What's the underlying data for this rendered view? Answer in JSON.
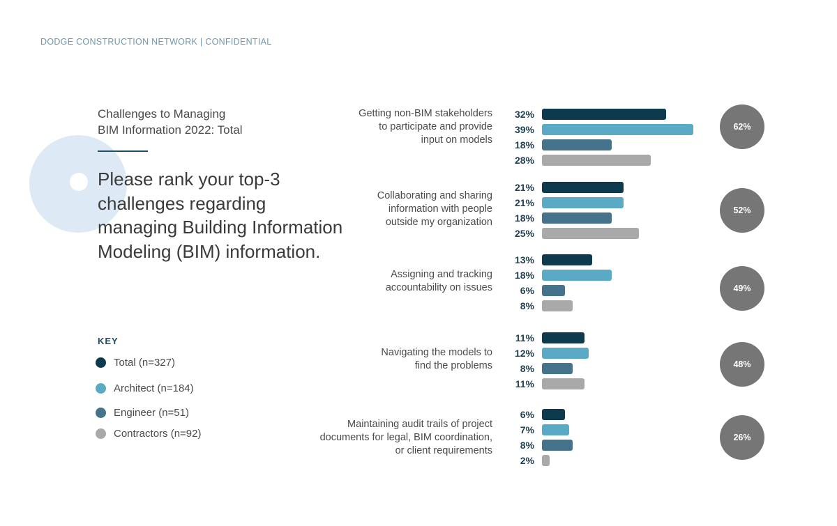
{
  "header": "DODGE CONSTRUCTION NETWORK  |  CONFIDENTIAL",
  "question": "Please rank your top-3 challenges regarding managing Building Information Modeling (BIM) information.",
  "key": {
    "title": "KEY",
    "items": [
      {
        "label": "Total (n=327)",
        "color": "#0e3a4e"
      },
      {
        "label": "Architect (n=184)",
        "color": "#5aaac6"
      },
      {
        "label": "Engineer (n=51)",
        "color": "#46738c"
      },
      {
        "label": "Contractors (n=92)",
        "color": "#a9a9a9"
      }
    ]
  },
  "chart_data": {
    "type": "bar",
    "orientation": "horizontal",
    "title": "Challenges to Managing\nBIM Information 2022: Total",
    "categories": [
      "Getting non-BIM stakeholders\nto participate and provide\ninput on models",
      "Collaborating and sharing\ninformation with people\noutside my organization",
      "Assigning and tracking\naccountability on issues",
      "Navigating the models to\nfind the problems",
      "Maintaining audit trails of project\ndocuments for legal, BIM coordination,\nor client requirements"
    ],
    "series": [
      {
        "name": "Total (n=327)",
        "color": "#0e3a4e",
        "values": [
          32,
          21,
          13,
          11,
          6
        ]
      },
      {
        "name": "Architect (n=184)",
        "color": "#5aaac6",
        "values": [
          39,
          21,
          18,
          12,
          7
        ]
      },
      {
        "name": "Engineer (n=51)",
        "color": "#46738c",
        "values": [
          18,
          18,
          6,
          8,
          8
        ]
      },
      {
        "name": "Contractors (n=92)",
        "color": "#a9a9a9",
        "values": [
          28,
          25,
          8,
          11,
          2
        ]
      }
    ],
    "badges": [
      "62%",
      "52%",
      "49%",
      "48%",
      "26%"
    ],
    "xlim": [
      0,
      40
    ],
    "unit": "%"
  }
}
